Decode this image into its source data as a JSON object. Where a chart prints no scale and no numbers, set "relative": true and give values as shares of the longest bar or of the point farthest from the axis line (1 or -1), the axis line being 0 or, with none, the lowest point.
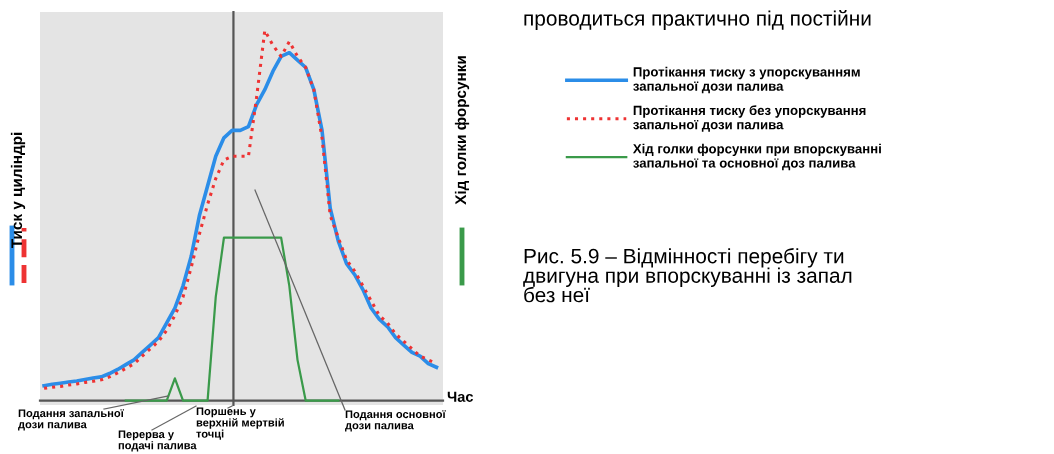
{
  "chart_data": {
    "type": "line",
    "relative": true,
    "ylabel": "Тиск у циліндрі",
    "y2label": "Хід голки форсунки",
    "xlabel": "Час",
    "categories": [
      null,
      null,
      null,
      null,
      null,
      null,
      null,
      null,
      null,
      null,
      null,
      null,
      null,
      null,
      null,
      null,
      null,
      null,
      null,
      null,
      null,
      null,
      null,
      null,
      null,
      null,
      null,
      null,
      null,
      null,
      null,
      null,
      null,
      null,
      null,
      null,
      null,
      null,
      null,
      null,
      null,
      null,
      null,
      null,
      null,
      null,
      null,
      null,
      null
    ],
    "series": [
      {
        "name": "Протікання тиску з упорскуванням\nзапальної дози палива",
        "color": "#2b8de8",
        "line_style": "solid",
        "values": [
          0.04,
          0.044,
          0.047,
          0.05,
          0.053,
          0.057,
          0.061,
          0.064,
          0.073,
          0.084,
          0.097,
          0.11,
          0.13,
          0.15,
          0.17,
          0.21,
          0.25,
          0.31,
          0.39,
          0.5,
          0.58,
          0.66,
          0.71,
          0.73,
          0.73,
          0.74,
          0.8,
          0.84,
          0.89,
          0.93,
          0.94,
          0.92,
          0.9,
          0.84,
          0.73,
          0.52,
          0.43,
          0.37,
          0.34,
          0.3,
          0.25,
          0.22,
          0.2,
          0.17,
          0.15,
          0.13,
          0.12,
          0.1,
          0.09
        ]
      },
      {
        "name": "Протікання тиску без упорскування\nзапальної дози палива",
        "color": "#ee3333",
        "line_style": "dotted",
        "values": [
          0.033,
          0.036,
          0.038,
          0.042,
          0.045,
          0.049,
          0.052,
          0.056,
          0.064,
          0.075,
          0.087,
          0.099,
          0.12,
          0.14,
          0.16,
          0.19,
          0.23,
          0.28,
          0.36,
          0.45,
          0.53,
          0.6,
          0.65,
          0.66,
          0.66,
          0.66,
          0.82,
          1.0,
          0.96,
          0.93,
          0.97,
          0.93,
          0.9,
          0.84,
          0.71,
          0.5,
          0.44,
          0.38,
          0.35,
          0.31,
          0.27,
          0.23,
          0.21,
          0.18,
          0.16,
          0.14,
          0.12,
          0.11,
          0.1
        ]
      },
      {
        "name": "Хід голки форсунки при впорскуванні\nзапальної та основної доз палива",
        "color": "#3a9a4a",
        "line_style": "solid",
        "values": [
          null,
          null,
          null,
          null,
          null,
          null,
          null,
          null,
          null,
          null,
          0,
          0,
          0,
          0,
          0,
          0,
          0.06,
          0,
          0,
          0,
          0,
          0.28,
          0.44,
          0.44,
          0.44,
          0.44,
          0.44,
          0.44,
          0.44,
          0.44,
          0.31,
          0.11,
          0,
          0,
          0,
          0,
          0,
          null,
          null,
          null,
          null,
          null,
          null,
          null,
          null,
          null,
          null,
          null,
          null
        ]
      }
    ],
    "legend": "right",
    "grid": false,
    "annotations": [
      "Подання запальної\nдози палива",
      "Поршень у\nверхній мертвій\nточці",
      "Подання основної\nдози палива",
      "Перерва у\nподачі палива",
      "проводиться практично під постійни",
      "Рис. 5.9 – Відмінності перебігу ти\nдвигуна при впорскуванні із запал\nбез неї"
    ]
  }
}
